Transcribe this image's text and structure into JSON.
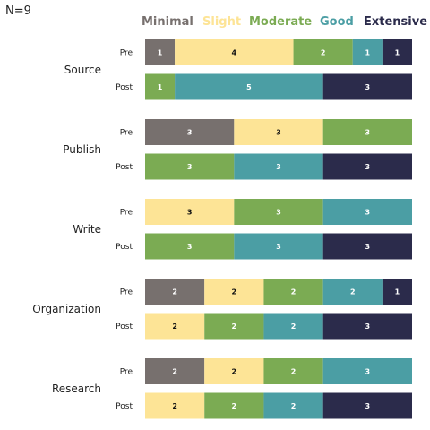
{
  "chart_data": {
    "type": "bar",
    "orientation": "horizontal",
    "stacked": true,
    "annotation": "N=9",
    "legend": [
      "Minimal",
      "Slight",
      "Moderate",
      "Good",
      "Extensive"
    ],
    "legend_position": "top",
    "colors": {
      "Minimal": "#77706e",
      "Slight": "#fde496",
      "Moderate": "#7bab53",
      "Good": "#4b9ea4",
      "Extensive": "#2b2b4b"
    },
    "groups": [
      {
        "name": "Source",
        "rows": [
          {
            "label": "Pre",
            "values": [
              1,
              4,
              2,
              1,
              1
            ]
          },
          {
            "label": "Post",
            "values": [
              0,
              0,
              1,
              5,
              3
            ]
          }
        ]
      },
      {
        "name": "Publish",
        "rows": [
          {
            "label": "Pre",
            "values": [
              3,
              3,
              3,
              0,
              0
            ]
          },
          {
            "label": "Post",
            "values": [
              0,
              0,
              3,
              3,
              3
            ]
          }
        ]
      },
      {
        "name": "Write",
        "rows": [
          {
            "label": "Pre",
            "values": [
              0,
              3,
              3,
              3,
              0
            ]
          },
          {
            "label": "Post",
            "values": [
              0,
              0,
              3,
              3,
              3
            ]
          }
        ]
      },
      {
        "name": "Organization",
        "rows": [
          {
            "label": "Pre",
            "values": [
              2,
              2,
              2,
              2,
              1
            ]
          },
          {
            "label": "Post",
            "values": [
              0,
              2,
              2,
              2,
              3
            ]
          }
        ]
      },
      {
        "name": "Research",
        "rows": [
          {
            "label": "Pre",
            "values": [
              2,
              2,
              2,
              3,
              0
            ]
          },
          {
            "label": "Post",
            "values": [
              0,
              2,
              2,
              2,
              3
            ]
          }
        ]
      }
    ],
    "xlim": [
      0,
      9
    ],
    "grid": false
  }
}
